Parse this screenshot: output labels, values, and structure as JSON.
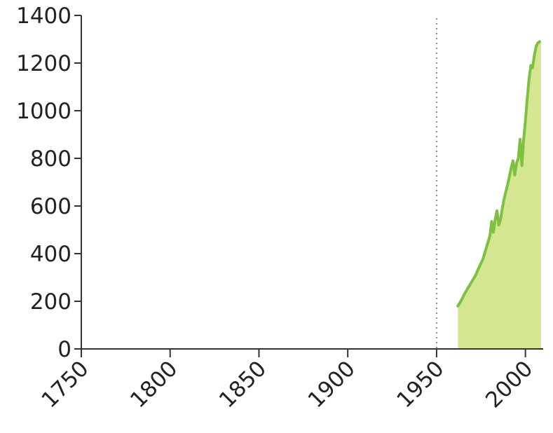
{
  "chart_data": {
    "type": "area",
    "title": "",
    "xlabel": "",
    "ylabel": "",
    "xlim": [
      1750,
      2010
    ],
    "ylim": [
      0,
      1400
    ],
    "x_ticks": [
      "1750",
      "1800",
      "1850",
      "1900",
      "1950",
      "2000"
    ],
    "y_ticks": [
      "0",
      "200",
      "400",
      "600",
      "800",
      "1000",
      "1200",
      "1400"
    ],
    "grid": false,
    "legend": "none",
    "reference_line": {
      "x": 1950,
      "style": "dotted"
    },
    "colors": {
      "line": "#7dc142",
      "fill": "#d4e68f",
      "axis": "#333333",
      "reference": "#888888"
    },
    "series": [
      {
        "x": [
          1962,
          1964,
          1966,
          1968,
          1970,
          1972,
          1974,
          1976,
          1978,
          1980,
          1981,
          1982,
          1983,
          1984,
          1985,
          1986,
          1987,
          1988,
          1990,
          1992,
          1993,
          1994,
          1995,
          1996,
          1997,
          1998,
          1999,
          2000,
          2001,
          2002,
          2003,
          2004,
          2005,
          2006,
          2007,
          2008
        ],
        "y": [
          180,
          205,
          235,
          260,
          285,
          310,
          345,
          375,
          425,
          475,
          535,
          490,
          545,
          580,
          520,
          545,
          590,
          630,
          690,
          760,
          790,
          730,
          780,
          800,
          880,
          770,
          880,
          960,
          1050,
          1130,
          1190,
          1180,
          1230,
          1270,
          1285,
          1290
        ]
      }
    ]
  }
}
